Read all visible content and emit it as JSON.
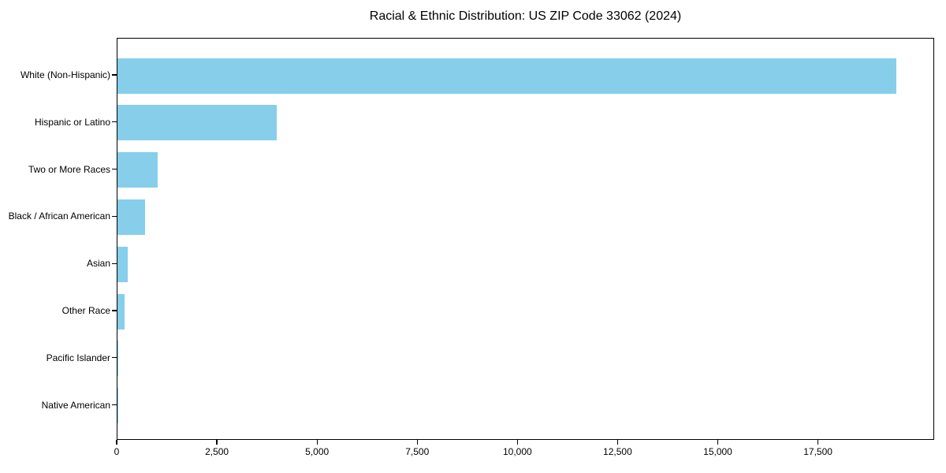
{
  "chart_data": {
    "type": "bar",
    "orientation": "horizontal",
    "title": "Racial & Ethnic Distribution: US ZIP Code 33062 (2024)",
    "categories": [
      "White (Non-Hispanic)",
      "Hispanic or Latino",
      "Two or More Races",
      "Black / African American",
      "Asian",
      "Other Race",
      "Pacific Islander",
      "Native American"
    ],
    "values": [
      19430,
      3970,
      1000,
      690,
      250,
      170,
      20,
      10
    ],
    "xlabel": "",
    "ylabel": "",
    "xlim": [
      0,
      20400
    ],
    "x_ticks": [
      0,
      2500,
      5000,
      7500,
      10000,
      12500,
      15000,
      17500
    ],
    "x_tick_labels": [
      "0",
      "2,500",
      "5,000",
      "7,500",
      "10,000",
      "12,500",
      "15,000",
      "17,500"
    ],
    "bar_color": "#87ceeb",
    "axis_color": "#000000",
    "text_color": "#000000",
    "grid": false,
    "legend": false
  }
}
